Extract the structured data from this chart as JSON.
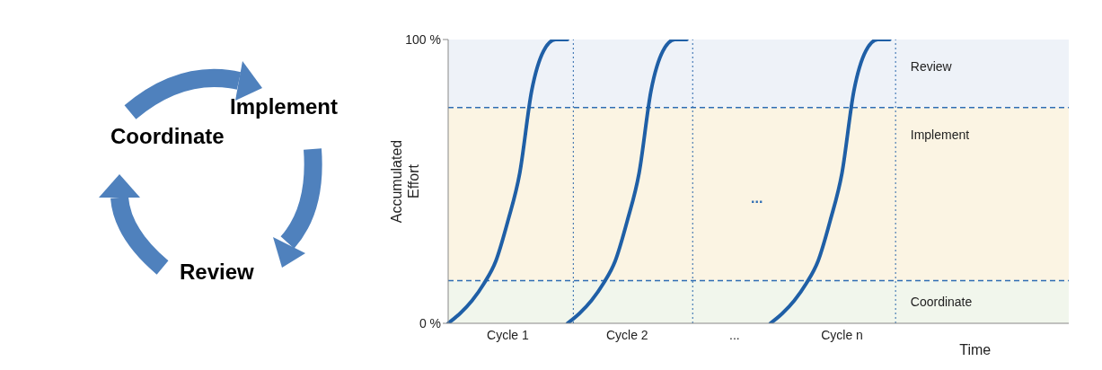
{
  "chart_data": {
    "type": "line",
    "xlabel": "Time",
    "ylabel": "Accumulated Effort",
    "categories": [
      null,
      null,
      null,
      null,
      null,
      "Cycle 1",
      null,
      null,
      null,
      null,
      null,
      null,
      null,
      null,
      null,
      "Cycle 2",
      null,
      null,
      null,
      null,
      null,
      null,
      null,
      null,
      "...",
      null,
      null,
      null,
      null,
      null,
      null,
      null,
      null,
      "Cycle n",
      null,
      null,
      null,
      null,
      null,
      null,
      null,
      null,
      null,
      null,
      null,
      null,
      null,
      null,
      null,
      null,
      null,
      null,
      null
    ],
    "series": [
      {
        "color": "#1f5fa6",
        "values": [
          0,
          3.5,
          8,
          14,
          22,
          36,
          53,
          82,
          96,
          100,
          100,
          null,
          null,
          null,
          null,
          null,
          null,
          null,
          null,
          null,
          null,
          null,
          null,
          null,
          null,
          null,
          null,
          null,
          null,
          null,
          null,
          null,
          null,
          null,
          null,
          null,
          null,
          null,
          null,
          null,
          null,
          null,
          null,
          null,
          null,
          null,
          null,
          null,
          null,
          null,
          null,
          null,
          null
        ]
      },
      {
        "color": "#1f5fa6",
        "values": [
          null,
          null,
          null,
          null,
          null,
          null,
          null,
          null,
          null,
          null,
          0,
          3.5,
          8,
          14,
          22,
          36,
          53,
          82,
          96,
          100,
          100,
          null,
          null,
          null,
          null,
          null,
          null,
          null,
          null,
          null,
          null,
          null,
          null,
          null,
          null,
          null,
          null,
          null,
          null,
          null,
          null,
          null,
          null,
          null,
          null,
          null,
          null,
          null,
          null,
          null,
          null,
          null,
          null
        ]
      },
      {
        "color": "#1f5fa6",
        "values": [
          null,
          null,
          null,
          null,
          null,
          null,
          null,
          null,
          null,
          null,
          null,
          null,
          null,
          null,
          null,
          null,
          null,
          null,
          null,
          null,
          null,
          null,
          null,
          null,
          null,
          null,
          null,
          0,
          3.5,
          8,
          14,
          22,
          36,
          53,
          82,
          96,
          100,
          100,
          null,
          null,
          null,
          null,
          null,
          null,
          null,
          null,
          null,
          null,
          null,
          null,
          null,
          null,
          null
        ]
      }
    ],
    "ylim": [
      0,
      100
    ],
    "yticks": [
      {
        "value": 0,
        "label": "0 %"
      },
      {
        "value": 100,
        "label": "100 %"
      }
    ],
    "bands": [
      {
        "axis": "y",
        "from": 0,
        "to": 15,
        "label": "Coordinate",
        "color": "#f1f6ec"
      },
      {
        "axis": "y",
        "from": 15,
        "to": 76,
        "label": "Implement",
        "color": "#fbf4e3"
      },
      {
        "axis": "y",
        "from": 76,
        "to": 100,
        "label": "Review",
        "color": "#eef2f8"
      }
    ],
    "ref_lines": [
      {
        "axis": "y",
        "value": 15,
        "color": "#2e6db4",
        "line_style": "dashed"
      },
      {
        "axis": "y",
        "value": 76,
        "color": "#2e6db4",
        "line_style": "dashed"
      }
    ],
    "annotations": [
      "Coordinate",
      "Implement",
      "Review",
      "..."
    ],
    "grid": false,
    "legend": false,
    "marker": "none",
    "line_style": "solid"
  }
}
